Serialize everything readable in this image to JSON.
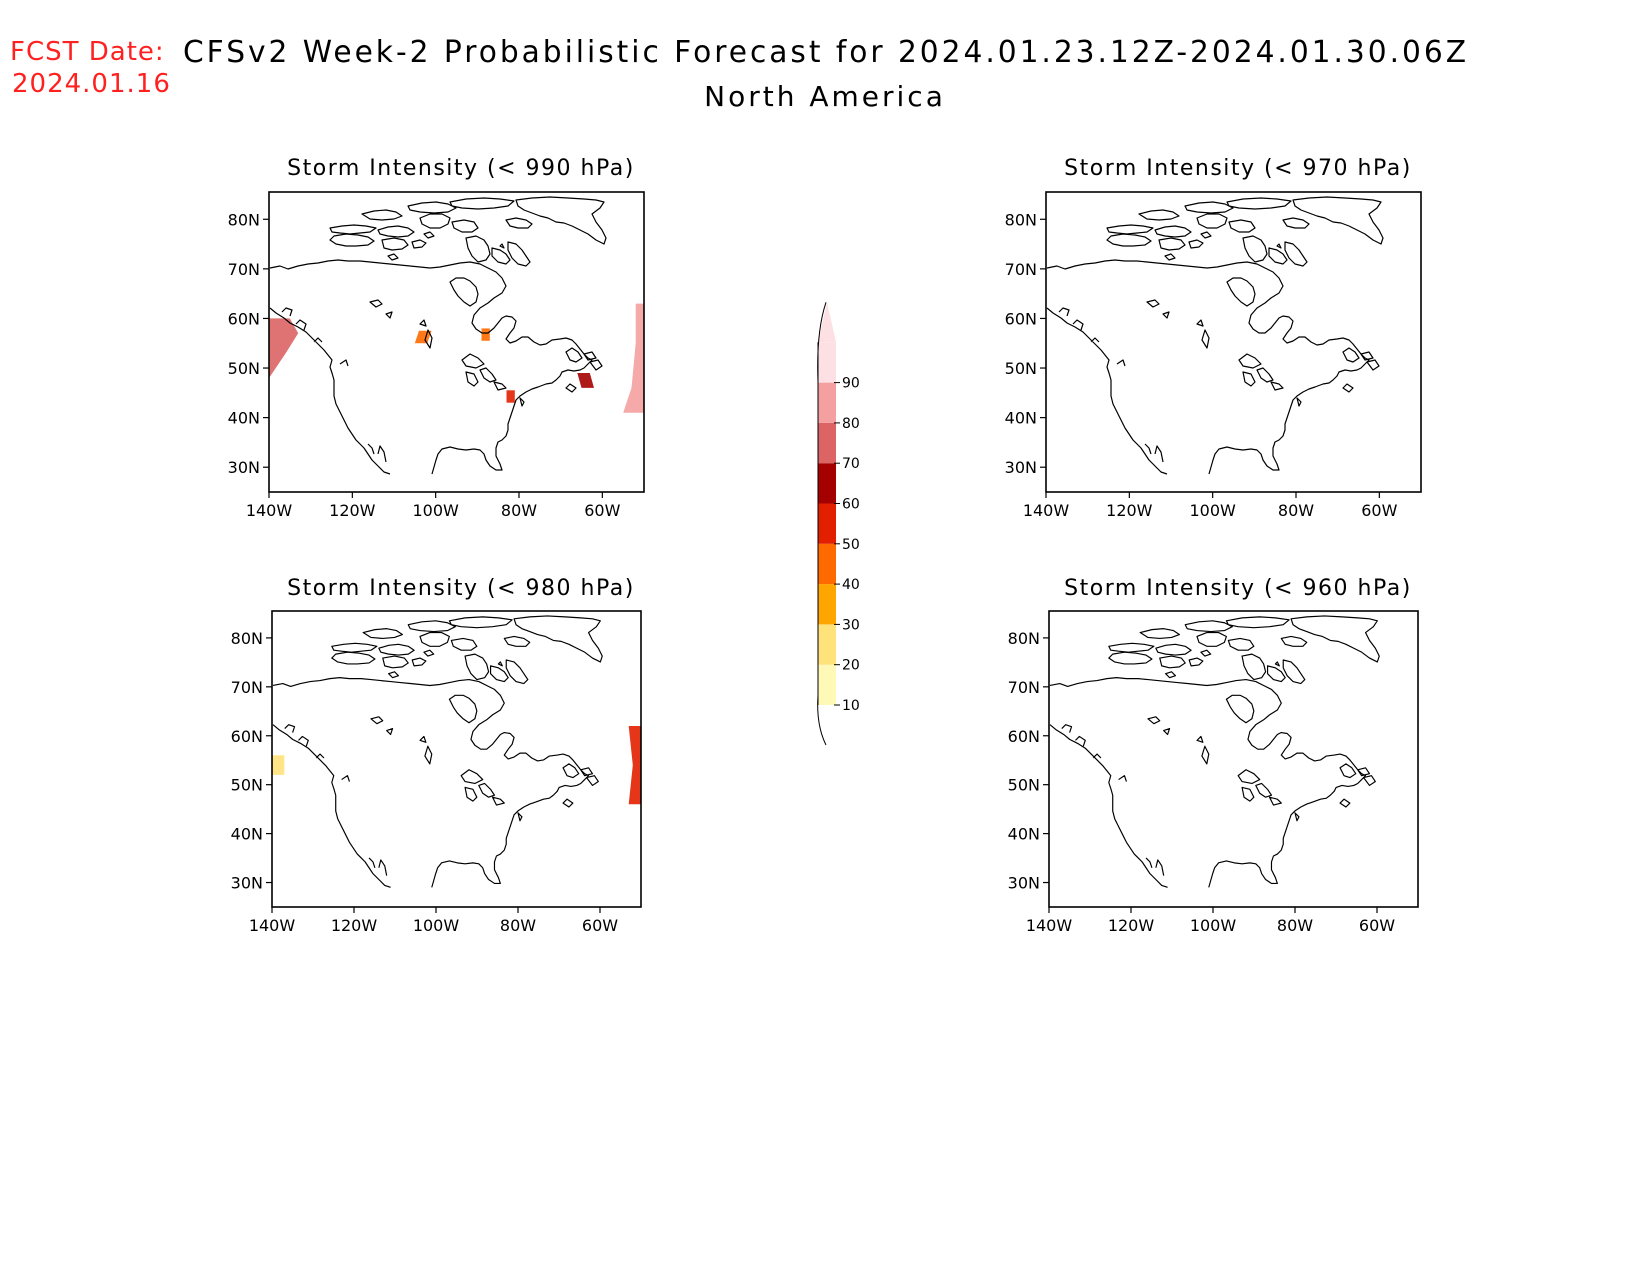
{
  "header": {
    "fcst_label": "FCST Date:",
    "fcst_date": "2024.01.16",
    "title": "CFSv2 Week-2 Probabilistic Forecast for 2024.01.23.12Z-2024.01.30.06Z",
    "subtitle": "North America"
  },
  "axes": {
    "lat_ticks": [
      "80N",
      "70N",
      "60N",
      "50N",
      "40N",
      "30N"
    ],
    "lon_ticks": [
      "140W",
      "120W",
      "100W",
      "80W",
      "60W"
    ]
  },
  "panels": [
    {
      "title": "Storm Intensity (< 990 hPa)",
      "probability_areas": [
        {
          "region": "Gulf of Alaska / BC coast",
          "level": 70
        },
        {
          "region": "Northern Atlantic coast (Labrador Sea)",
          "level": 80
        },
        {
          "region": "Gulf of St. Lawrence",
          "level": 60
        },
        {
          "region": "Central Canada",
          "level": 40
        },
        {
          "region": "Hudson Bay",
          "level": 40
        },
        {
          "region": "Great Lakes",
          "level": 50
        }
      ]
    },
    {
      "title": "Storm Intensity (< 970 hPa)",
      "probability_areas": []
    },
    {
      "title": "Storm Intensity (< 980 hPa)",
      "probability_areas": [
        {
          "region": "Gulf of Alaska",
          "level": 20
        },
        {
          "region": "Labrador / Newfoundland coast",
          "level": 50
        }
      ]
    },
    {
      "title": "Storm Intensity (< 960 hPa)",
      "probability_areas": []
    }
  ],
  "colorbar": {
    "labels": [
      "10",
      "20",
      "30",
      "40",
      "50",
      "60",
      "70",
      "80",
      "90"
    ],
    "colors": [
      "#fff9b8",
      "#ffe27a",
      "#ffa500",
      "#ff6a00",
      "#e22000",
      "#a50000",
      "#dc6464",
      "#f4a0a0",
      "#fde0e4"
    ]
  }
}
